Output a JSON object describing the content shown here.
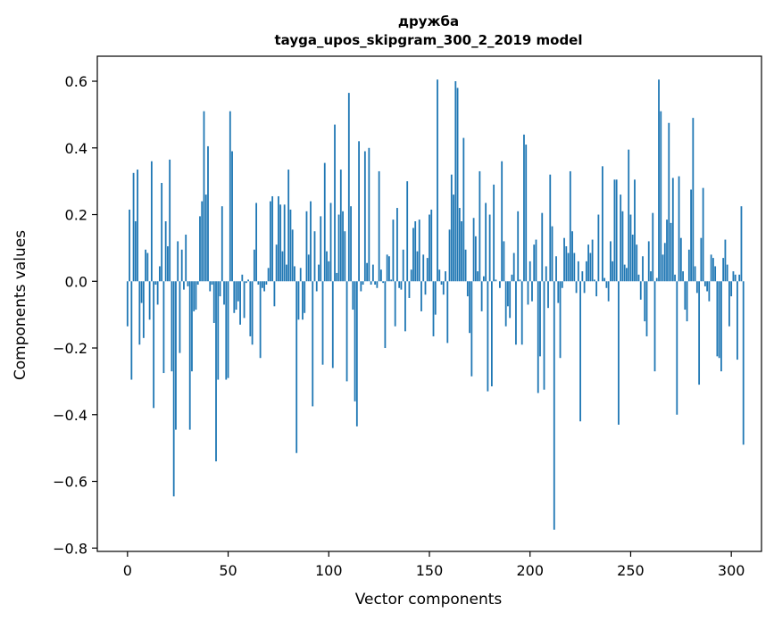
{
  "chart_data": {
    "type": "bar",
    "title_line1": "дружба",
    "title_line2": "tayga_upos_skipgram_300_2_2019 model",
    "xlabel": "Vector components",
    "ylabel": "Components values",
    "xlim": [
      -15,
      315
    ],
    "ylim": [
      -0.81,
      0.675
    ],
    "x_ticks": [
      0,
      50,
      100,
      150,
      200,
      250,
      300
    ],
    "x_tick_labels": [
      "0",
      "50",
      "100",
      "150",
      "200",
      "250",
      "300"
    ],
    "y_ticks": [
      -0.8,
      -0.6,
      -0.4,
      -0.2,
      0.0,
      0.2,
      0.4,
      0.6
    ],
    "y_tick_labels": [
      "−0.8",
      "−0.6",
      "−0.4",
      "−0.2",
      "0.0",
      "0.2",
      "0.4",
      "0.6"
    ],
    "bar_color": "#1f77b4",
    "values": [
      -0.135,
      0.215,
      -0.295,
      0.325,
      0.18,
      0.335,
      -0.19,
      -0.065,
      -0.17,
      0.095,
      0.085,
      -0.115,
      0.36,
      -0.38,
      -0.01,
      -0.07,
      0.045,
      0.295,
      -0.275,
      0.18,
      0.105,
      0.365,
      -0.27,
      -0.645,
      -0.445,
      0.12,
      -0.215,
      0.095,
      -0.025,
      0.14,
      -0.015,
      -0.445,
      -0.27,
      -0.09,
      -0.085,
      -0.01,
      0.195,
      0.24,
      0.51,
      0.26,
      0.405,
      -0.03,
      -0.01,
      -0.125,
      -0.54,
      -0.295,
      -0.045,
      0.225,
      -0.07,
      -0.295,
      -0.29,
      0.51,
      0.39,
      -0.095,
      -0.085,
      -0.06,
      -0.13,
      0.02,
      -0.11,
      -0.005,
      0.005,
      -0.165,
      -0.19,
      0.095,
      0.235,
      -0.01,
      -0.23,
      -0.02,
      -0.03,
      -0.01,
      0.04,
      0.24,
      0.255,
      -0.075,
      0.11,
      0.255,
      0.23,
      0.09,
      0.23,
      0.05,
      0.335,
      0.215,
      0.155,
      0.045,
      -0.515,
      -0.115,
      0.04,
      -0.115,
      -0.095,
      0.21,
      0.08,
      0.24,
      -0.375,
      0.15,
      -0.03,
      0.05,
      0.195,
      -0.25,
      0.355,
      0.09,
      0.06,
      0.235,
      -0.26,
      0.47,
      0.025,
      0.2,
      0.335,
      0.21,
      0.15,
      -0.3,
      0.565,
      0.225,
      -0.085,
      -0.36,
      -0.435,
      0.42,
      -0.03,
      -0.01,
      0.39,
      0.055,
      0.4,
      -0.01,
      0.05,
      -0.01,
      -0.02,
      0.33,
      0.035,
      -0.005,
      -0.2,
      0.08,
      0.075,
      0.005,
      0.185,
      -0.135,
      0.22,
      -0.02,
      -0.025,
      0.095,
      -0.15,
      0.3,
      -0.05,
      0.035,
      0.16,
      0.18,
      0.09,
      0.185,
      -0.09,
      0.08,
      -0.04,
      0.07,
      0.2,
      0.215,
      -0.165,
      -0.1,
      0.605,
      0.035,
      -0.01,
      -0.04,
      0.03,
      -0.185,
      0.155,
      0.32,
      0.26,
      0.6,
      0.58,
      0.22,
      0.18,
      0.43,
      0.095,
      -0.045,
      -0.155,
      -0.285,
      0.19,
      0.135,
      0.03,
      0.33,
      -0.09,
      0.015,
      0.235,
      -0.33,
      0.2,
      -0.315,
      0.29,
      0.005,
      0.0,
      -0.02,
      0.36,
      0.12,
      -0.135,
      -0.075,
      -0.11,
      0.02,
      0.085,
      -0.19,
      0.21,
      0.005,
      -0.19,
      0.44,
      0.41,
      -0.07,
      0.06,
      -0.06,
      0.11,
      0.125,
      -0.335,
      -0.225,
      0.205,
      -0.325,
      0.045,
      -0.08,
      0.32,
      0.165,
      -0.745,
      0.075,
      -0.065,
      -0.23,
      -0.02,
      0.13,
      0.105,
      0.085,
      0.33,
      0.15,
      0.085,
      -0.035,
      0.06,
      -0.42,
      0.03,
      -0.035,
      0.06,
      0.11,
      0.085,
      0.125,
      0.005,
      -0.045,
      0.2,
      0.0,
      0.345,
      0.01,
      -0.02,
      -0.06,
      0.12,
      0.06,
      0.305,
      0.305,
      -0.43,
      0.26,
      0.21,
      0.05,
      0.04,
      0.395,
      0.2,
      0.14,
      0.305,
      0.11,
      0.02,
      -0.055,
      0.075,
      -0.12,
      -0.165,
      0.12,
      0.03,
      0.205,
      -0.27,
      0.01,
      0.605,
      0.51,
      0.08,
      0.115,
      0.185,
      0.475,
      0.175,
      0.31,
      0.02,
      -0.4,
      0.315,
      0.13,
      0.03,
      -0.085,
      -0.12,
      0.095,
      0.275,
      0.49,
      0.045,
      -0.035,
      -0.31,
      0.13,
      0.28,
      -0.015,
      -0.03,
      -0.06,
      0.08,
      0.07,
      0.045,
      -0.225,
      -0.23,
      -0.27,
      0.07,
      0.125,
      0.05,
      -0.135,
      -0.045,
      0.03,
      0.02,
      -0.235,
      0.02,
      0.225,
      -0.49
    ]
  }
}
